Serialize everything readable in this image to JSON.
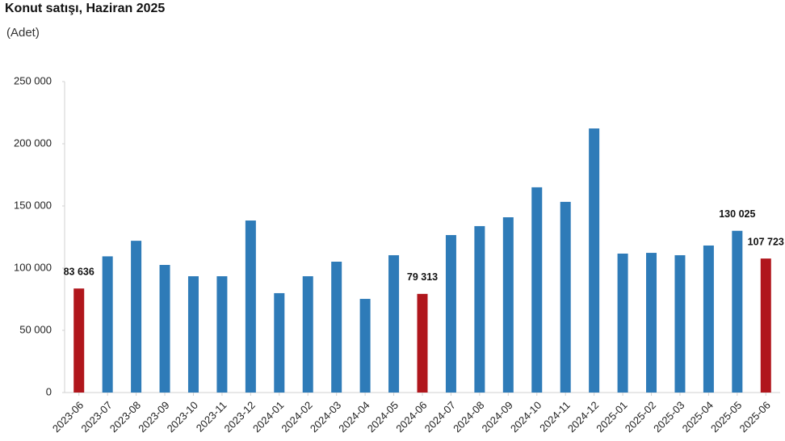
{
  "chart_data": {
    "type": "bar",
    "title": "Konut satışı, Haziran 2025",
    "subtitle": "(Adet)",
    "categories": [
      "2023-06",
      "2023-07",
      "2023-08",
      "2023-09",
      "2023-10",
      "2023-11",
      "2023-12",
      "2024-01",
      "2024-02",
      "2024-03",
      "2024-04",
      "2024-05",
      "2024-06",
      "2024-07",
      "2024-08",
      "2024-09",
      "2024-10",
      "2024-11",
      "2024-12",
      "2025-01",
      "2025-02",
      "2025-03",
      "2025-04",
      "2025-05",
      "2025-06"
    ],
    "values": [
      83636,
      109500,
      122000,
      102600,
      93500,
      93500,
      138300,
      79900,
      93500,
      105200,
      75300,
      110400,
      79313,
      126600,
      133800,
      140900,
      165000,
      153300,
      212300,
      111700,
      112300,
      110400,
      118200,
      130025,
      107723
    ],
    "value_labels": [
      "83 636",
      null,
      null,
      null,
      null,
      null,
      null,
      null,
      null,
      null,
      null,
      null,
      "79 313",
      null,
      null,
      null,
      null,
      null,
      null,
      null,
      null,
      null,
      null,
      "130 025",
      "107 723"
    ],
    "colors": [
      "#b0161c",
      "#2e7bb8",
      "#2e7bb8",
      "#2e7bb8",
      "#2e7bb8",
      "#2e7bb8",
      "#2e7bb8",
      "#2e7bb8",
      "#2e7bb8",
      "#2e7bb8",
      "#2e7bb8",
      "#2e7bb8",
      "#b0161c",
      "#2e7bb8",
      "#2e7bb8",
      "#2e7bb8",
      "#2e7bb8",
      "#2e7bb8",
      "#2e7bb8",
      "#2e7bb8",
      "#2e7bb8",
      "#2e7bb8",
      "#2e7bb8",
      "#2e7bb8",
      "#b0161c"
    ],
    "ylim": [
      0,
      250000
    ],
    "yticks": [
      {
        "value": 0,
        "label": "0"
      },
      {
        "value": 50000,
        "label": "50 000"
      },
      {
        "value": 100000,
        "label": "100 000"
      },
      {
        "value": 150000,
        "label": "150 000"
      },
      {
        "value": 200000,
        "label": "200 000"
      },
      {
        "value": 250000,
        "label": "250 000"
      }
    ],
    "grid": false
  }
}
